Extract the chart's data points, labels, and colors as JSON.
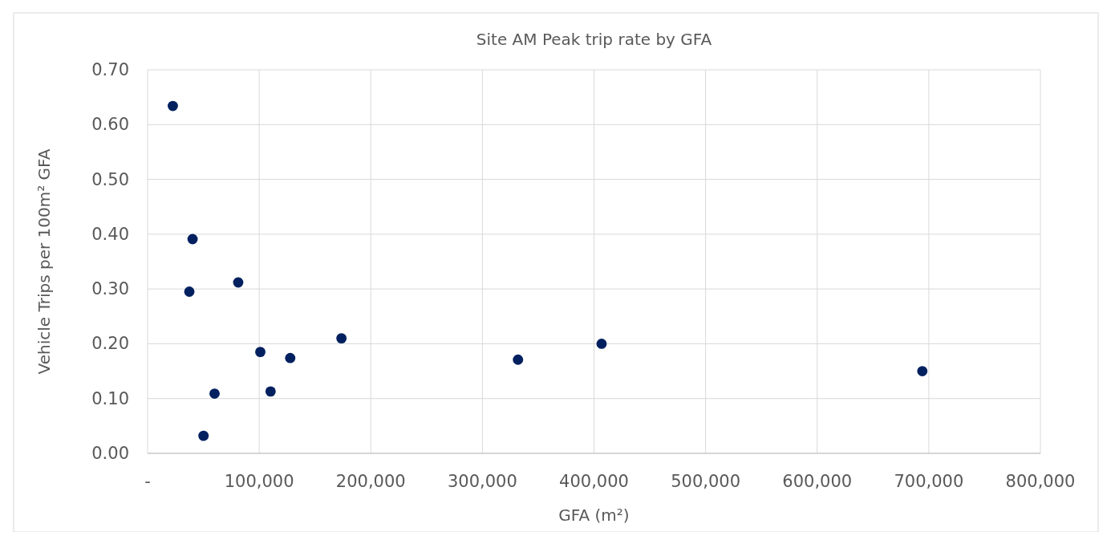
{
  "chart_data": {
    "type": "scatter",
    "title": "Site AM Peak trip rate by GFA",
    "xlabel": "GFA (m²)",
    "ylabel": "Vehicle Trips per 100m² GFA",
    "x": [
      22600,
      40300,
      37400,
      81200,
      101000,
      60000,
      50100,
      110200,
      127800,
      173700,
      331900,
      406800,
      694200
    ],
    "series": [
      {
        "color": "#002060",
        "values": [
          0.634,
          0.391,
          0.295,
          0.312,
          0.185,
          0.109,
          0.032,
          0.113,
          0.174,
          0.21,
          0.171,
          0.2,
          0.15
        ]
      }
    ],
    "xlim": [
      0,
      800000
    ],
    "xticks": [
      {
        "value": 0,
        "label": "-"
      },
      {
        "value": 100000,
        "label": "100,000"
      },
      {
        "value": 200000,
        "label": "200,000"
      },
      {
        "value": 300000,
        "label": "300,000"
      },
      {
        "value": 400000,
        "label": "400,000"
      },
      {
        "value": 500000,
        "label": "500,000"
      },
      {
        "value": 600000,
        "label": "600,000"
      },
      {
        "value": 700000,
        "label": "700,000"
      },
      {
        "value": 800000,
        "label": "800,000"
      }
    ],
    "ylim": [
      0,
      0.7
    ],
    "yticks": [
      {
        "value": 0,
        "label": "0.00"
      },
      {
        "value": 0.1,
        "label": "0.10"
      },
      {
        "value": 0.2,
        "label": "0.20"
      },
      {
        "value": 0.3,
        "label": "0.30"
      },
      {
        "value": 0.4,
        "label": "0.40"
      },
      {
        "value": 0.5,
        "label": "0.50"
      },
      {
        "value": 0.6,
        "label": "0.60"
      },
      {
        "value": 0.7,
        "label": "0.70"
      }
    ],
    "grid": true,
    "marker": "circle"
  }
}
